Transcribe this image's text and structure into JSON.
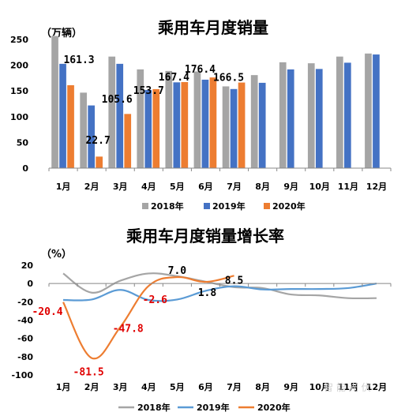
{
  "top": {
    "title": "乘用车月度销量",
    "unit_label": "（万辆）",
    "legend": [
      "2018年",
      "2019年",
      "2020年"
    ]
  },
  "bottom": {
    "title": "乘用车月度销量增长率",
    "unit_label": "（%）",
    "legend": [
      "2018年",
      "2019年",
      "2020年"
    ]
  },
  "colors": {
    "y2018_bar": "#a5a5a5",
    "y2019_bar": "#4472c4",
    "y2020_bar": "#ed7d31",
    "y2018_line": "#a5a5a5",
    "y2019_line": "#5b9bd5",
    "y2020_line": "#ed7d31",
    "neg_label": "#e00000"
  },
  "watermark": "智 能 光 伏",
  "chart_data": [
    {
      "type": "bar",
      "title": "乘用车月度销量",
      "ylabel": "（万辆）",
      "categories": [
        "1月",
        "2月",
        "3月",
        "4月",
        "5月",
        "6月",
        "7月",
        "8月",
        "9月",
        "10月",
        "11月",
        "12月"
      ],
      "ylim": [
        0,
        250
      ],
      "yticks": [
        0,
        50,
        100,
        150,
        200,
        250
      ],
      "series": [
        {
          "name": "2018年",
          "values": [
            257,
            147,
            217,
            192,
            189,
            188,
            159,
            181,
            206,
            204,
            217,
            223
          ]
        },
        {
          "name": "2019年",
          "values": [
            203,
            122,
            203,
            152,
            167,
            172,
            154,
            166,
            192,
            193,
            205,
            221
          ]
        },
        {
          "name": "2020年",
          "values": [
            161.3,
            22.7,
            105.6,
            153.7,
            167.4,
            176.4,
            166.5,
            null,
            null,
            null,
            null,
            null
          ]
        }
      ],
      "data_labels": [
        "161.3",
        "22.7",
        "105.6",
        "153.7",
        "167.4",
        "176.4",
        "166.5"
      ],
      "legend_position": "bottom",
      "grid": false
    },
    {
      "type": "line",
      "title": "乘用车月度销量增长率",
      "ylabel": "（%）",
      "categories": [
        "1月",
        "2月",
        "3月",
        "4月",
        "5月",
        "6月",
        "7月",
        "8月",
        "9月",
        "10月",
        "11月",
        "12月"
      ],
      "ylim": [
        -100,
        20
      ],
      "yticks": [
        20,
        0,
        -20,
        -40,
        -60,
        -80,
        -100
      ],
      "series": [
        {
          "name": "2018年",
          "values": [
            11,
            -10,
            3,
            11,
            8,
            2,
            -4,
            -5,
            -12,
            -13,
            -16,
            -16
          ]
        },
        {
          "name": "2019年",
          "values": [
            -18,
            -17.5,
            -7,
            -18,
            -17.5,
            -8,
            -3,
            -6.5,
            -6,
            -6,
            -5,
            0
          ]
        },
        {
          "name": "2020年",
          "values": [
            -20.4,
            -81.5,
            -47.8,
            -2.6,
            7.0,
            1.8,
            8.5,
            null,
            null,
            null,
            null,
            null
          ]
        }
      ],
      "data_labels": [
        "-20.4",
        "-81.5",
        "-47.8",
        "-2.6",
        "7.0",
        "1.8",
        "8.5"
      ],
      "legend_position": "bottom",
      "grid": false
    }
  ]
}
